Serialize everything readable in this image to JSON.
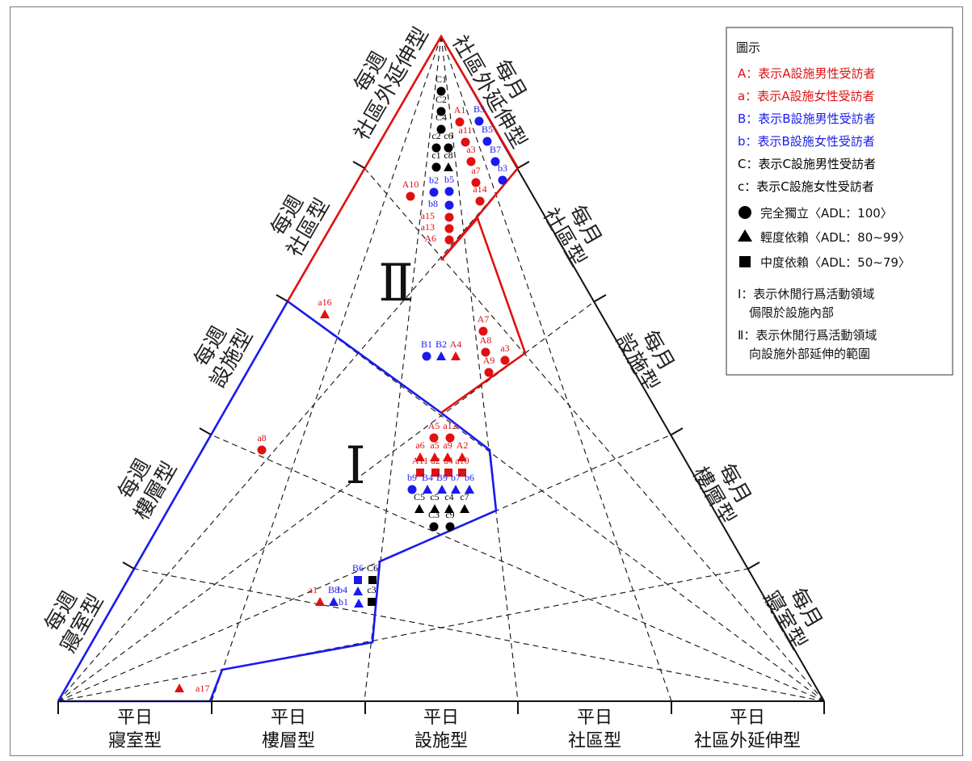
{
  "colors": {
    "A": "#e01010",
    "B": "#1a1aee",
    "C": "#000000",
    "regionI": "#1a1aee",
    "regionII": "#e01010"
  },
  "legend": {
    "title": "圖示",
    "items": [
      {
        "text": "A：表示A設施男性受訪者",
        "color": "#e01010"
      },
      {
        "text": "a：表示A設施女性受訪者",
        "color": "#e01010"
      },
      {
        "text": "B：表示B設施男性受訪者",
        "color": "#1a1aee"
      },
      {
        "text": "b：表示B設施女性受訪者",
        "color": "#1a1aee"
      },
      {
        "text": "C：表示C設施男性受訪者",
        "color": "#000000"
      },
      {
        "text": "c：表示C設施女性受訪者",
        "color": "#000000"
      }
    ],
    "markers": [
      {
        "shape": "circle",
        "text": "完全獨立〈ADL：100〉"
      },
      {
        "shape": "triangle",
        "text": "輕度依賴〈ADL：80~99〉"
      },
      {
        "shape": "square",
        "text": "中度依賴〈ADL：50~79〉"
      }
    ],
    "regions": [
      {
        "line1": "Ⅰ：表示休閒行爲活動領域",
        "line2": "侷限於設施內部"
      },
      {
        "line1": "Ⅱ：表示休閒行爲活動領域",
        "line2": "向設施外部延伸的範圍"
      }
    ]
  },
  "region_labels": {
    "I": "Ⅰ",
    "II": "Ⅱ"
  },
  "bottom_axis": [
    {
      "line1": "平日",
      "line2": "寢室型"
    },
    {
      "line1": "平日",
      "line2": "樓層型"
    },
    {
      "line1": "平日",
      "line2": "設施型"
    },
    {
      "line1": "平日",
      "line2": "社區型"
    },
    {
      "line1": "平日",
      "line2": "社區外延伸型"
    }
  ],
  "left_axis": [
    {
      "line1": "每週",
      "line2": "寢室型"
    },
    {
      "line1": "每週",
      "line2": "樓層型"
    },
    {
      "line1": "每週",
      "line2": "設施型"
    },
    {
      "line1": "每週",
      "line2": "社區型"
    },
    {
      "line1": "每週",
      "line2": "社區外延伸型"
    }
  ],
  "right_axis": [
    {
      "line1": "每月",
      "line2": "寢室型"
    },
    {
      "line1": "每月",
      "line2": "樓層型"
    },
    {
      "line1": "每月",
      "line2": "設施型"
    },
    {
      "line1": "每月",
      "line2": "社區型"
    },
    {
      "line1": "每月",
      "line2": "社區外延伸型"
    }
  ],
  "subjects": [
    {
      "id": "C1",
      "group": "C",
      "level": "circle"
    },
    {
      "id": "C2",
      "group": "C",
      "level": "circle"
    },
    {
      "id": "C4",
      "group": "C",
      "level": "circle"
    },
    {
      "id": "c2",
      "group": "C",
      "level": "circle"
    },
    {
      "id": "c6",
      "group": "C",
      "level": "circle"
    },
    {
      "id": "c1",
      "group": "C",
      "level": "circle"
    },
    {
      "id": "c8",
      "group": "C",
      "level": "triangle"
    },
    {
      "id": "A1",
      "group": "A",
      "level": "circle"
    },
    {
      "id": "B3",
      "group": "B",
      "level": "circle"
    },
    {
      "id": "a11",
      "group": "A",
      "level": "circle"
    },
    {
      "id": "B5",
      "group": "B",
      "level": "circle"
    },
    {
      "id": "B7",
      "group": "B",
      "level": "circle"
    },
    {
      "id": "a3",
      "group": "A",
      "level": "circle"
    },
    {
      "id": "b3",
      "group": "B",
      "level": "circle"
    },
    {
      "id": "a7",
      "group": "A",
      "level": "circle"
    },
    {
      "id": "A10",
      "group": "A",
      "level": "circle"
    },
    {
      "id": "b2",
      "group": "B",
      "level": "circle"
    },
    {
      "id": "b5",
      "group": "B",
      "level": "circle"
    },
    {
      "id": "a14",
      "group": "A",
      "level": "circle"
    },
    {
      "id": "b8",
      "group": "B",
      "level": "circle"
    },
    {
      "id": "a15",
      "group": "A",
      "level": "circle"
    },
    {
      "id": "a13",
      "group": "A",
      "level": "circle"
    },
    {
      "id": "A6",
      "group": "A",
      "level": "circle"
    },
    {
      "id": "a16",
      "group": "A",
      "level": "triangle"
    },
    {
      "id": "A7",
      "group": "A",
      "level": "circle"
    },
    {
      "id": "A8",
      "group": "A",
      "level": "circle"
    },
    {
      "id": "a3",
      "group": "A",
      "level": "circle"
    },
    {
      "id": "A9",
      "group": "A",
      "level": "circle"
    },
    {
      "id": "B1",
      "group": "B",
      "level": "circle"
    },
    {
      "id": "B2",
      "group": "B",
      "level": "triangle"
    },
    {
      "id": "A4",
      "group": "A",
      "level": "triangle"
    },
    {
      "id": "a8",
      "group": "A",
      "level": "circle"
    },
    {
      "id": "A5",
      "group": "A",
      "level": "circle"
    },
    {
      "id": "a12",
      "group": "A",
      "level": "circle"
    },
    {
      "id": "a6",
      "group": "A",
      "level": "triangle"
    },
    {
      "id": "a5",
      "group": "A",
      "level": "triangle"
    },
    {
      "id": "a9",
      "group": "A",
      "level": "triangle"
    },
    {
      "id": "A2",
      "group": "A",
      "level": "triangle"
    },
    {
      "id": "A11",
      "group": "A",
      "level": "square"
    },
    {
      "id": "a2",
      "group": "A",
      "level": "square"
    },
    {
      "id": "a4",
      "group": "A",
      "level": "square"
    },
    {
      "id": "a10",
      "group": "A",
      "level": "square"
    },
    {
      "id": "b9",
      "group": "B",
      "level": "circle"
    },
    {
      "id": "B4",
      "group": "B",
      "level": "triangle"
    },
    {
      "id": "B9",
      "group": "B",
      "level": "triangle"
    },
    {
      "id": "b7",
      "group": "B",
      "level": "triangle"
    },
    {
      "id": "b6",
      "group": "B",
      "level": "triangle"
    },
    {
      "id": "C5",
      "group": "C",
      "level": "triangle"
    },
    {
      "id": "c5",
      "group": "C",
      "level": "triangle"
    },
    {
      "id": "c4",
      "group": "C",
      "level": "triangle"
    },
    {
      "id": "c7",
      "group": "C",
      "level": "triangle"
    },
    {
      "id": "C3",
      "group": "C",
      "level": "circle"
    },
    {
      "id": "c9",
      "group": "C",
      "level": "circle"
    },
    {
      "id": "B6",
      "group": "B",
      "level": "square"
    },
    {
      "id": "C6",
      "group": "C",
      "level": "square"
    },
    {
      "id": "a1",
      "group": "A",
      "level": "triangle"
    },
    {
      "id": "B8",
      "group": "B",
      "level": "triangle"
    },
    {
      "id": "b4",
      "group": "B",
      "level": "triangle"
    },
    {
      "id": "c3",
      "group": "C",
      "level": "square"
    },
    {
      "id": "b1",
      "group": "B",
      "level": "triangle"
    },
    {
      "id": "a17",
      "group": "A",
      "level": "triangle"
    }
  ]
}
